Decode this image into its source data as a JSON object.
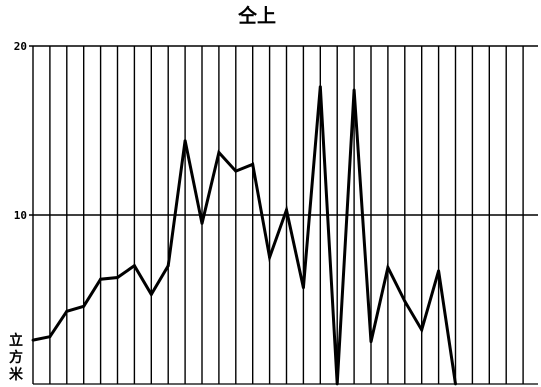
{
  "chart_data": {
    "type": "line",
    "title": "仝上",
    "ylabel": "立方米",
    "xlabel": "",
    "ylim": [
      0,
      20
    ],
    "yticks": [
      {
        "value": 20,
        "label": "20"
      },
      {
        "value": 10,
        "label": "10"
      }
    ],
    "grid": {
      "vertical": true,
      "horizontal_at_ticks": true
    },
    "x": [
      0,
      1,
      2,
      3,
      4,
      5,
      6,
      7,
      8,
      9,
      10,
      11,
      12,
      13,
      14,
      15,
      16,
      17,
      18,
      19,
      20,
      21,
      22,
      23,
      24,
      25
    ],
    "series": [
      {
        "color": "#000000",
        "values": [
          2.6,
          2.8,
          4.3,
          4.6,
          6.2,
          6.3,
          7.0,
          5.3,
          7.0,
          14.4,
          9.5,
          13.7,
          12.6,
          13.0,
          7.5,
          10.3,
          5.7,
          17.6,
          0.0,
          17.4,
          2.5,
          6.9,
          4.9,
          3.2,
          6.7,
          0.0
        ]
      }
    ]
  }
}
